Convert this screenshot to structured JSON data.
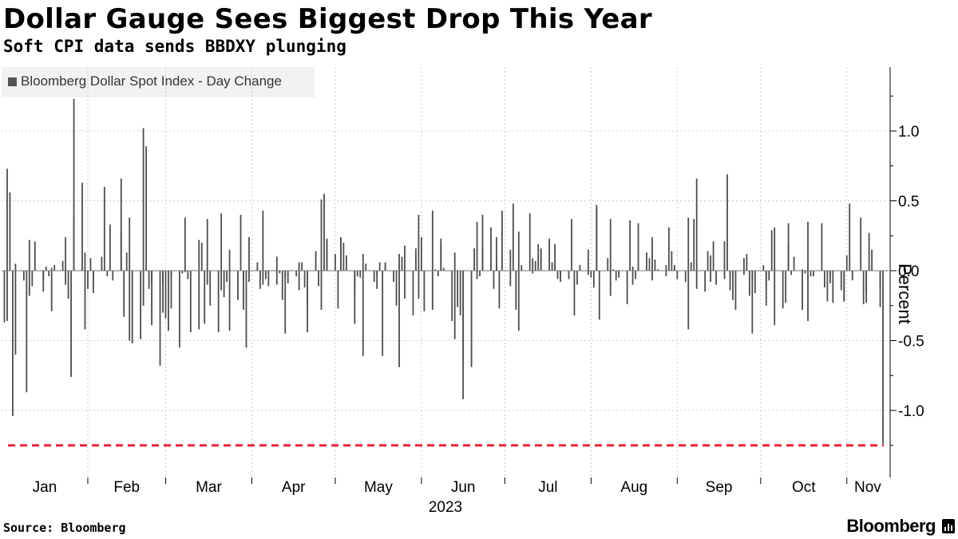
{
  "header": {
    "title": "Dollar Gauge Sees Biggest Drop This Year",
    "subtitle": "Soft CPI data sends BBDXY plunging"
  },
  "footer": {
    "source": "Source: Bloomberg",
    "brand": "Bloomberg"
  },
  "colors": {
    "bar": "#4d4d4d",
    "reference_line": "#e8253c",
    "grid": "#c8c8c8"
  },
  "chart_data": {
    "type": "bar",
    "legend": [
      "Bloomberg Dollar Spot Index - Day Change"
    ],
    "legend_position": "top-left",
    "ylabel": "Percent",
    "y_axis_side": "right",
    "ylim": [
      -1.45,
      1.45
    ],
    "yticks": [
      1.0,
      0.5,
      0.0,
      -0.5,
      -1.0
    ],
    "ytick_labels": [
      "1.0",
      "0.5",
      "0.0",
      "-0.5",
      "-1.0"
    ],
    "xtick_labels": [
      "Jan",
      "Feb",
      "Mar",
      "Apr",
      "May",
      "Jun",
      "Jul",
      "Aug",
      "Sep",
      "Oct",
      "Nov"
    ],
    "x_year_label": "2023",
    "reference_line": {
      "value": -1.25,
      "style": "dashed"
    },
    "grid": "vertical-dotted",
    "series": [
      {
        "name": "Bloomberg Dollar Spot Index - Day Change",
        "start_date": "2023-01-02",
        "end_date": "2023-11-14",
        "values": [
          -0.37,
          0.73,
          -0.36,
          0.56,
          -1.04,
          -0.6,
          0.05,
          -0.07,
          -0.87,
          -0.18,
          0.22,
          -0.11,
          0.21,
          -0.07,
          -0.15,
          0.03,
          -0.04,
          -0.29,
          0.02,
          0.04,
          0.07,
          0.24,
          -0.1,
          -0.2,
          -0.76,
          0.39,
          1.23,
          0.63,
          -0.42,
          0.13,
          -0.13,
          0.09,
          -0.16,
          -0.05,
          0.1,
          0.6,
          0.0,
          -0.04,
          0.33,
          -0.07,
          0.28,
          0.66,
          -0.33,
          0.13,
          -0.5,
          0.38,
          -0.52,
          -0.49,
          1.02,
          -0.25,
          0.89,
          -0.13,
          -0.09,
          -0.39,
          -0.68,
          -0.1,
          -0.3,
          -0.34,
          -0.43,
          -0.04,
          -0.27,
          -0.55,
          -0.02,
          0.38,
          -0.01,
          -0.06,
          -0.44,
          0.22,
          -0.42,
          0.2,
          -0.38,
          0.37,
          -0.1,
          -0.25,
          -0.44,
          0.41,
          -0.14,
          -0.19,
          -0.08,
          0.15,
          -0.43,
          -0.21,
          0.4,
          -0.07,
          -0.28,
          -0.55,
          0.24,
          -0.08,
          0.06,
          -0.13,
          -0.1,
          0.43,
          -0.06,
          -0.11,
          -0.1,
          0.1,
          -0.02,
          -0.21,
          -0.04,
          -0.45,
          -0.09,
          -0.04,
          0.06,
          -0.14,
          0.06,
          -0.12,
          -0.25,
          -0.44,
          0.14,
          -0.11,
          0.51,
          -0.28,
          0.55,
          0.23,
          0.22,
          0.12,
          -0.27,
          0.23,
          0.24,
          0.2,
          0.11,
          -0.17,
          -0.38,
          -0.04,
          -0.05,
          0.12,
          -0.61,
          0.05,
          -0.08,
          -0.03,
          -0.13,
          0.06,
          -0.61,
          0.06,
          0.04,
          -0.08,
          -0.25,
          -0.69,
          0.12,
          0.1,
          0.18,
          -0.2,
          -0.32,
          0.16,
          0.4,
          -0.2,
          0.24,
          -0.29,
          0.43,
          -0.28,
          0.01,
          -0.04,
          0.18,
          0.23,
          0.02,
          -0.36,
          0.13,
          -0.49,
          -0.26,
          -0.32,
          -0.64,
          -0.92,
          -0.69,
          0.16,
          0.35,
          -0.06,
          -0.04,
          0.16,
          0.4,
          0.31,
          -0.13,
          0.24,
          0.05,
          -0.27,
          0.43,
          0.15,
          -0.11,
          0.48,
          -0.28,
          0.28,
          -0.43,
          0.04,
          0.41,
          -0.02,
          0.09,
          0.07,
          0.19,
          0.16,
          0.15,
          0.23,
          0.06,
          0.19,
          0.04,
          -0.06,
          -0.08,
          -0.04,
          -0.06,
          0.37,
          -0.01,
          -0.32,
          -0.1,
          0.04,
          -0.03,
          0.15,
          -0.05,
          -0.12,
          0.45,
          0.47,
          -0.35,
          0.09,
          0.37,
          -0.18,
          0.01,
          -0.07,
          0.0,
          -0.05,
          -0.24,
          0.36,
          0.03,
          -0.1,
          -0.06,
          0.03,
          0.34,
          0.13,
          0.09,
          -0.07,
          0.24,
          0.08,
          0.01,
          -0.04,
          0.04,
          0.31,
          0.14,
          0.04,
          0.02,
          -0.06,
          -0.08,
          -0.42,
          0.38,
          0.06,
          0.37,
          -0.13,
          0.66,
          -0.15,
          0.14,
          -0.08,
          0.11,
          0.21,
          -0.1,
          -0.06,
          0.21,
          0.69,
          -0.05,
          -0.14,
          -0.21,
          -0.28,
          -0.03,
          0.09,
          0.12,
          -0.18,
          -0.45,
          -0.07,
          -0.16,
          0.04,
          -0.25,
          -0.1,
          -0.07,
          0.29,
          0.31,
          -0.39,
          -0.27,
          -0.23,
          0.34,
          0.19,
          -0.03,
          0.1,
          0.01,
          -0.28,
          -0.02,
          0.35,
          -0.36,
          -0.04,
          -0.04,
          0.34,
          0.01,
          -0.12,
          -0.22,
          -0.05,
          -0.09,
          -0.23,
          -0.14,
          -0.22,
          -0.22,
          0.11,
          0.48,
          -0.01,
          -0.07,
          0.38,
          -0.24,
          -0.23,
          -0.16,
          0.27,
          0.15,
          -0.12,
          -0.26,
          -1.24
        ]
      }
    ]
  }
}
